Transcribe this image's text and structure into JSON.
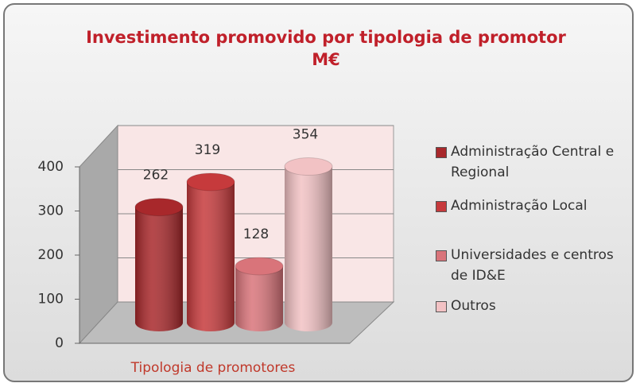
{
  "chart_data": {
    "type": "bar",
    "title": "Investimento promovido por tipologia de promotor",
    "subtitle": "M€",
    "x_label": "Tipologia de promotores",
    "series": [
      {
        "name": "Administração Central e Regional",
        "color": "#a8282b",
        "values": [
          262
        ]
      },
      {
        "name": "Administração Local",
        "color": "#c63a3c",
        "values": [
          319
        ]
      },
      {
        "name": "Universidades e centros de ID&E",
        "color": "#d9747a",
        "values": [
          128
        ]
      },
      {
        "name": "Outros",
        "color": "#f2c2c4",
        "values": [
          354
        ]
      }
    ],
    "ylim": [
      0,
      400
    ],
    "yticks": [
      0,
      100,
      200,
      300,
      400
    ],
    "grid": true,
    "legend": "right"
  }
}
